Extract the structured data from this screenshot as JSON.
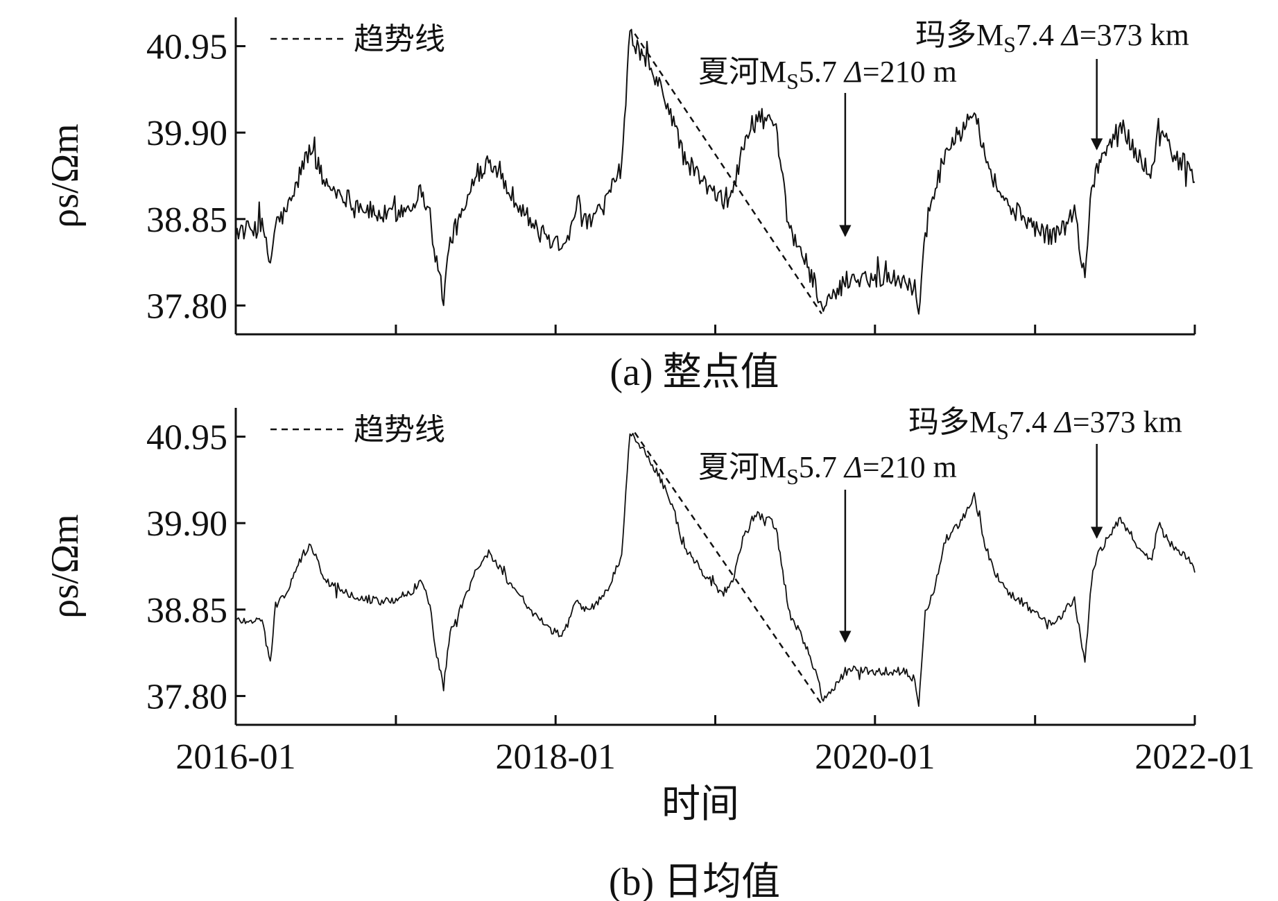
{
  "x_axis_label": "时间",
  "chart_data": [
    {
      "type": "line",
      "caption": "(a) 整点值",
      "ylabel": "ρs/Ωm",
      "ylim": [
        37.45,
        41.3
      ],
      "xlim": [
        "2016-01",
        "2022-01"
      ],
      "x_ticks": [
        "2016-01",
        "2017-01",
        "2018-01",
        "2019-01",
        "2020-01",
        "2021-01",
        "2022-01"
      ],
      "x_tick_labels_shown": false,
      "y_ticks": [
        "37.80",
        "38.85",
        "39.90",
        "40.95"
      ],
      "legend": {
        "label": "趋势线",
        "position": "top-left"
      },
      "trend_line": {
        "x": [
          "2018-07",
          "2019-09"
        ],
        "y": [
          41.1,
          37.7
        ]
      },
      "annotations": [
        {
          "text_prefix": "夏河",
          "text_mag": "M",
          "text_sub": "S",
          "text_value": "5.7",
          "text_delta": "Δ",
          "text_rest": "=210 m",
          "x": "2019-10-25"
        },
        {
          "text_prefix": "玛多",
          "text_mag": "M",
          "text_sub": "S",
          "text_value": "7.4",
          "text_delta": "Δ",
          "text_rest": "=373 km",
          "x": "2021-05-22"
        }
      ],
      "series": [
        {
          "noise": 0.12,
          "points": [
            [
              "2016-01-01",
              38.7
            ],
            [
              "2016-02-01",
              38.72
            ],
            [
              "2016-03-01",
              38.75
            ],
            [
              "2016-03-20",
              38.3
            ],
            [
              "2016-04-01",
              38.8
            ],
            [
              "2016-04-20",
              38.9
            ],
            [
              "2016-05-10",
              39.1
            ],
            [
              "2016-06-01",
              39.5
            ],
            [
              "2016-06-20",
              39.7
            ],
            [
              "2016-07-05",
              39.55
            ],
            [
              "2016-07-20",
              39.3
            ],
            [
              "2016-08-15",
              39.2
            ],
            [
              "2016-09-15",
              39.1
            ],
            [
              "2016-10-15",
              39.0
            ],
            [
              "2016-11-20",
              38.9
            ],
            [
              "2016-12-20",
              38.9
            ],
            [
              "2017-02-01",
              39.0
            ],
            [
              "2017-03-01",
              39.2
            ],
            [
              "2017-03-20",
              38.9
            ],
            [
              "2017-04-01",
              38.4
            ],
            [
              "2017-04-20",
              37.9
            ],
            [
              "2017-05-05",
              38.6
            ],
            [
              "2017-06-01",
              38.9
            ],
            [
              "2017-07-01",
              39.3
            ],
            [
              "2017-08-01",
              39.6
            ],
            [
              "2017-08-20",
              39.45
            ],
            [
              "2017-09-15",
              39.2
            ],
            [
              "2017-10-15",
              39.0
            ],
            [
              "2017-11-20",
              38.7
            ],
            [
              "2017-12-20",
              38.6
            ],
            [
              "2018-01-15",
              38.55
            ],
            [
              "2018-02-01",
              38.7
            ],
            [
              "2018-02-20",
              39.1
            ],
            [
              "2018-03-05",
              38.8
            ],
            [
              "2018-04-01",
              38.85
            ],
            [
              "2018-05-01",
              39.1
            ],
            [
              "2018-06-01",
              39.5
            ],
            [
              "2018-06-20",
              41.1
            ],
            [
              "2018-07-10",
              40.9
            ],
            [
              "2018-08-01",
              40.7
            ],
            [
              "2018-09-01",
              40.4
            ],
            [
              "2018-10-01",
              40.0
            ],
            [
              "2018-10-20",
              39.6
            ],
            [
              "2018-11-20",
              39.4
            ],
            [
              "2018-12-20",
              39.2
            ],
            [
              "2019-01-20",
              39.05
            ],
            [
              "2019-02-10",
              39.2
            ],
            [
              "2019-03-05",
              39.7
            ],
            [
              "2019-04-01",
              40.1
            ],
            [
              "2019-05-01",
              40.05
            ],
            [
              "2019-05-20",
              39.9
            ],
            [
              "2019-06-01",
              39.4
            ],
            [
              "2019-06-20",
              38.7
            ],
            [
              "2019-07-15",
              38.5
            ],
            [
              "2019-08-15",
              38.1
            ],
            [
              "2019-09-05",
              37.75
            ],
            [
              "2019-10-01",
              37.9
            ],
            [
              "2019-10-25",
              38.1
            ],
            [
              "2019-11-20",
              38.15
            ],
            [
              "2019-12-20",
              38.13
            ],
            [
              "2020-02-01",
              38.13
            ],
            [
              "2020-03-10",
              38.12
            ],
            [
              "2020-04-01",
              38.0
            ],
            [
              "2020-04-10",
              37.7
            ],
            [
              "2020-04-25",
              38.8
            ],
            [
              "2020-05-15",
              39.1
            ],
            [
              "2020-06-10",
              39.7
            ],
            [
              "2020-07-15",
              39.9
            ],
            [
              "2020-08-15",
              40.25
            ],
            [
              "2020-09-05",
              39.7
            ],
            [
              "2020-10-01",
              39.3
            ],
            [
              "2020-11-01",
              39.0
            ],
            [
              "2020-12-01",
              38.9
            ],
            [
              "2021-01-01",
              38.75
            ],
            [
              "2021-02-01",
              38.65
            ],
            [
              "2021-03-01",
              38.7
            ],
            [
              "2021-04-01",
              38.95
            ],
            [
              "2021-04-15",
              38.45
            ],
            [
              "2021-04-25",
              38.2
            ],
            [
              "2021-05-10",
              39.2
            ],
            [
              "2021-05-22",
              39.5
            ],
            [
              "2021-06-15",
              39.7
            ],
            [
              "2021-07-15",
              40.0
            ],
            [
              "2021-08-15",
              39.7
            ],
            [
              "2021-09-10",
              39.5
            ],
            [
              "2021-09-25",
              39.4
            ],
            [
              "2021-10-10",
              40.0
            ],
            [
              "2021-10-25",
              39.8
            ],
            [
              "2021-11-15",
              39.6
            ],
            [
              "2021-12-15",
              39.5
            ],
            [
              "2022-01-01",
              39.3
            ]
          ]
        }
      ]
    },
    {
      "type": "line",
      "caption": "(b) 日均值",
      "ylabel": "ρs/Ωm",
      "ylim": [
        37.45,
        41.3
      ],
      "xlim": [
        "2016-01",
        "2022-01"
      ],
      "x_ticks": [
        "2016-01",
        "2017-01",
        "2018-01",
        "2019-01",
        "2020-01",
        "2021-01",
        "2022-01"
      ],
      "x_tick_labels": [
        "2016-01",
        "2018-01",
        "2020-01",
        "2022-01"
      ],
      "y_ticks": [
        "37.80",
        "38.85",
        "39.90",
        "40.95"
      ],
      "legend": {
        "label": "趋势线",
        "position": "top-left"
      },
      "trend_line": {
        "x": [
          "2018-07",
          "2019-09"
        ],
        "y": [
          41.0,
          37.7
        ]
      },
      "annotations": [
        {
          "text_prefix": "夏河",
          "text_mag": "M",
          "text_sub": "S",
          "text_value": "5.7",
          "text_delta": "Δ",
          "text_rest": "=210 m",
          "x": "2019-10-25"
        },
        {
          "text_prefix": "玛多",
          "text_mag": "M",
          "text_sub": "S",
          "text_value": "7.4",
          "text_delta": "Δ",
          "text_rest": "=373 km",
          "x": "2021-05-22"
        }
      ],
      "series": [
        {
          "noise": 0.05,
          "points": [
            [
              "2016-01-01",
              38.72
            ],
            [
              "2016-03-01",
              38.72
            ],
            [
              "2016-03-20",
              38.2
            ],
            [
              "2016-04-01",
              38.9
            ],
            [
              "2016-05-01",
              39.1
            ],
            [
              "2016-06-01",
              39.5
            ],
            [
              "2016-06-20",
              39.65
            ],
            [
              "2016-07-05",
              39.45
            ],
            [
              "2016-07-20",
              39.2
            ],
            [
              "2016-08-15",
              39.15
            ],
            [
              "2016-09-15",
              39.05
            ],
            [
              "2016-10-15",
              39.0
            ],
            [
              "2016-11-20",
              38.95
            ],
            [
              "2016-12-20",
              38.95
            ],
            [
              "2017-02-01",
              39.05
            ],
            [
              "2017-03-01",
              39.2
            ],
            [
              "2017-03-20",
              38.9
            ],
            [
              "2017-04-01",
              38.4
            ],
            [
              "2017-04-20",
              37.9
            ],
            [
              "2017-05-05",
              38.6
            ],
            [
              "2017-06-01",
              38.9
            ],
            [
              "2017-07-01",
              39.3
            ],
            [
              "2017-08-01",
              39.55
            ],
            [
              "2017-08-20",
              39.4
            ],
            [
              "2017-09-15",
              39.2
            ],
            [
              "2017-10-15",
              39.0
            ],
            [
              "2017-11-20",
              38.75
            ],
            [
              "2017-12-20",
              38.6
            ],
            [
              "2018-01-15",
              38.55
            ],
            [
              "2018-02-01",
              38.7
            ],
            [
              "2018-02-20",
              39.0
            ],
            [
              "2018-03-05",
              38.85
            ],
            [
              "2018-04-01",
              38.9
            ],
            [
              "2018-05-01",
              39.1
            ],
            [
              "2018-06-01",
              39.5
            ],
            [
              "2018-06-20",
              41.0
            ],
            [
              "2018-07-10",
              40.85
            ],
            [
              "2018-08-01",
              40.7
            ],
            [
              "2018-09-01",
              40.4
            ],
            [
              "2018-10-01",
              40.0
            ],
            [
              "2018-10-20",
              39.6
            ],
            [
              "2018-11-20",
              39.4
            ],
            [
              "2018-12-20",
              39.2
            ],
            [
              "2019-01-20",
              39.05
            ],
            [
              "2019-02-10",
              39.2
            ],
            [
              "2019-03-05",
              39.7
            ],
            [
              "2019-04-01",
              40.0
            ],
            [
              "2019-05-01",
              39.95
            ],
            [
              "2019-05-20",
              39.85
            ],
            [
              "2019-06-01",
              39.4
            ],
            [
              "2019-06-20",
              38.8
            ],
            [
              "2019-07-15",
              38.55
            ],
            [
              "2019-08-15",
              38.15
            ],
            [
              "2019-09-05",
              37.75
            ],
            [
              "2019-10-01",
              37.9
            ],
            [
              "2019-10-25",
              38.1
            ],
            [
              "2019-11-20",
              38.12
            ],
            [
              "2019-12-20",
              38.1
            ],
            [
              "2020-02-01",
              38.1
            ],
            [
              "2020-03-10",
              38.1
            ],
            [
              "2020-04-01",
              38.0
            ],
            [
              "2020-04-10",
              37.7
            ],
            [
              "2020-04-25",
              38.8
            ],
            [
              "2020-05-15",
              39.1
            ],
            [
              "2020-06-10",
              39.7
            ],
            [
              "2020-07-15",
              39.9
            ],
            [
              "2020-08-15",
              40.25
            ],
            [
              "2020-09-05",
              39.7
            ],
            [
              "2020-10-01",
              39.3
            ],
            [
              "2020-11-01",
              39.05
            ],
            [
              "2020-12-01",
              38.95
            ],
            [
              "2021-01-01",
              38.8
            ],
            [
              "2021-02-01",
              38.7
            ],
            [
              "2021-03-01",
              38.75
            ],
            [
              "2021-04-01",
              39.0
            ],
            [
              "2021-04-15",
              38.5
            ],
            [
              "2021-04-25",
              38.2
            ],
            [
              "2021-05-10",
              39.2
            ],
            [
              "2021-05-22",
              39.5
            ],
            [
              "2021-06-15",
              39.7
            ],
            [
              "2021-07-15",
              39.95
            ],
            [
              "2021-08-15",
              39.7
            ],
            [
              "2021-09-10",
              39.5
            ],
            [
              "2021-09-25",
              39.45
            ],
            [
              "2021-10-10",
              39.9
            ],
            [
              "2021-10-25",
              39.75
            ],
            [
              "2021-11-15",
              39.6
            ],
            [
              "2021-12-15",
              39.5
            ],
            [
              "2022-01-01",
              39.3
            ]
          ]
        }
      ]
    }
  ]
}
